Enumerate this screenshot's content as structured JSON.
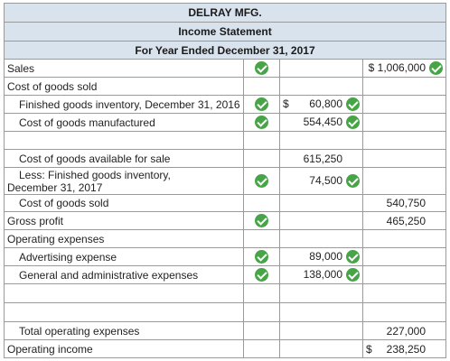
{
  "header": {
    "company": "DELRAY MFG.",
    "statement": "Income Statement",
    "period": "For Year Ended December 31, 2017"
  },
  "rows": {
    "sales": {
      "label": "Sales",
      "col3": "$ 1,006,000"
    },
    "cogs_head": {
      "label": "Cost of goods sold"
    },
    "fg_begin": {
      "label": "Finished goods inventory, December 31, 2016",
      "cur": "$",
      "col2": "60,800"
    },
    "cogm": {
      "label": "Cost of goods manufactured",
      "col2": "554,450"
    },
    "available": {
      "label": "Cost of goods available for sale",
      "col2": "615,250"
    },
    "fg_end": {
      "label": "Less: Finished goods inventory, December 31, 2017",
      "col2": "74,500"
    },
    "cogs": {
      "label": "Cost of goods sold",
      "col3": "540,750"
    },
    "gross": {
      "label": "Gross profit",
      "col3": "465,250"
    },
    "opex_head": {
      "label": "Operating expenses"
    },
    "advertising": {
      "label": "Advertising expense",
      "col2": "89,000"
    },
    "ga": {
      "label": "General and administrative expenses",
      "col2": "138,000"
    },
    "total_opex": {
      "label": "Total operating expenses",
      "col3": "227,000"
    },
    "op_income": {
      "label": "Operating income",
      "cur": "$",
      "col3": "238,250"
    }
  },
  "colors": {
    "header_bg": "#d9e3ee",
    "check": "#47a447",
    "border": "#9a9a9a"
  },
  "icons": {
    "correct": "check-circle-icon"
  }
}
